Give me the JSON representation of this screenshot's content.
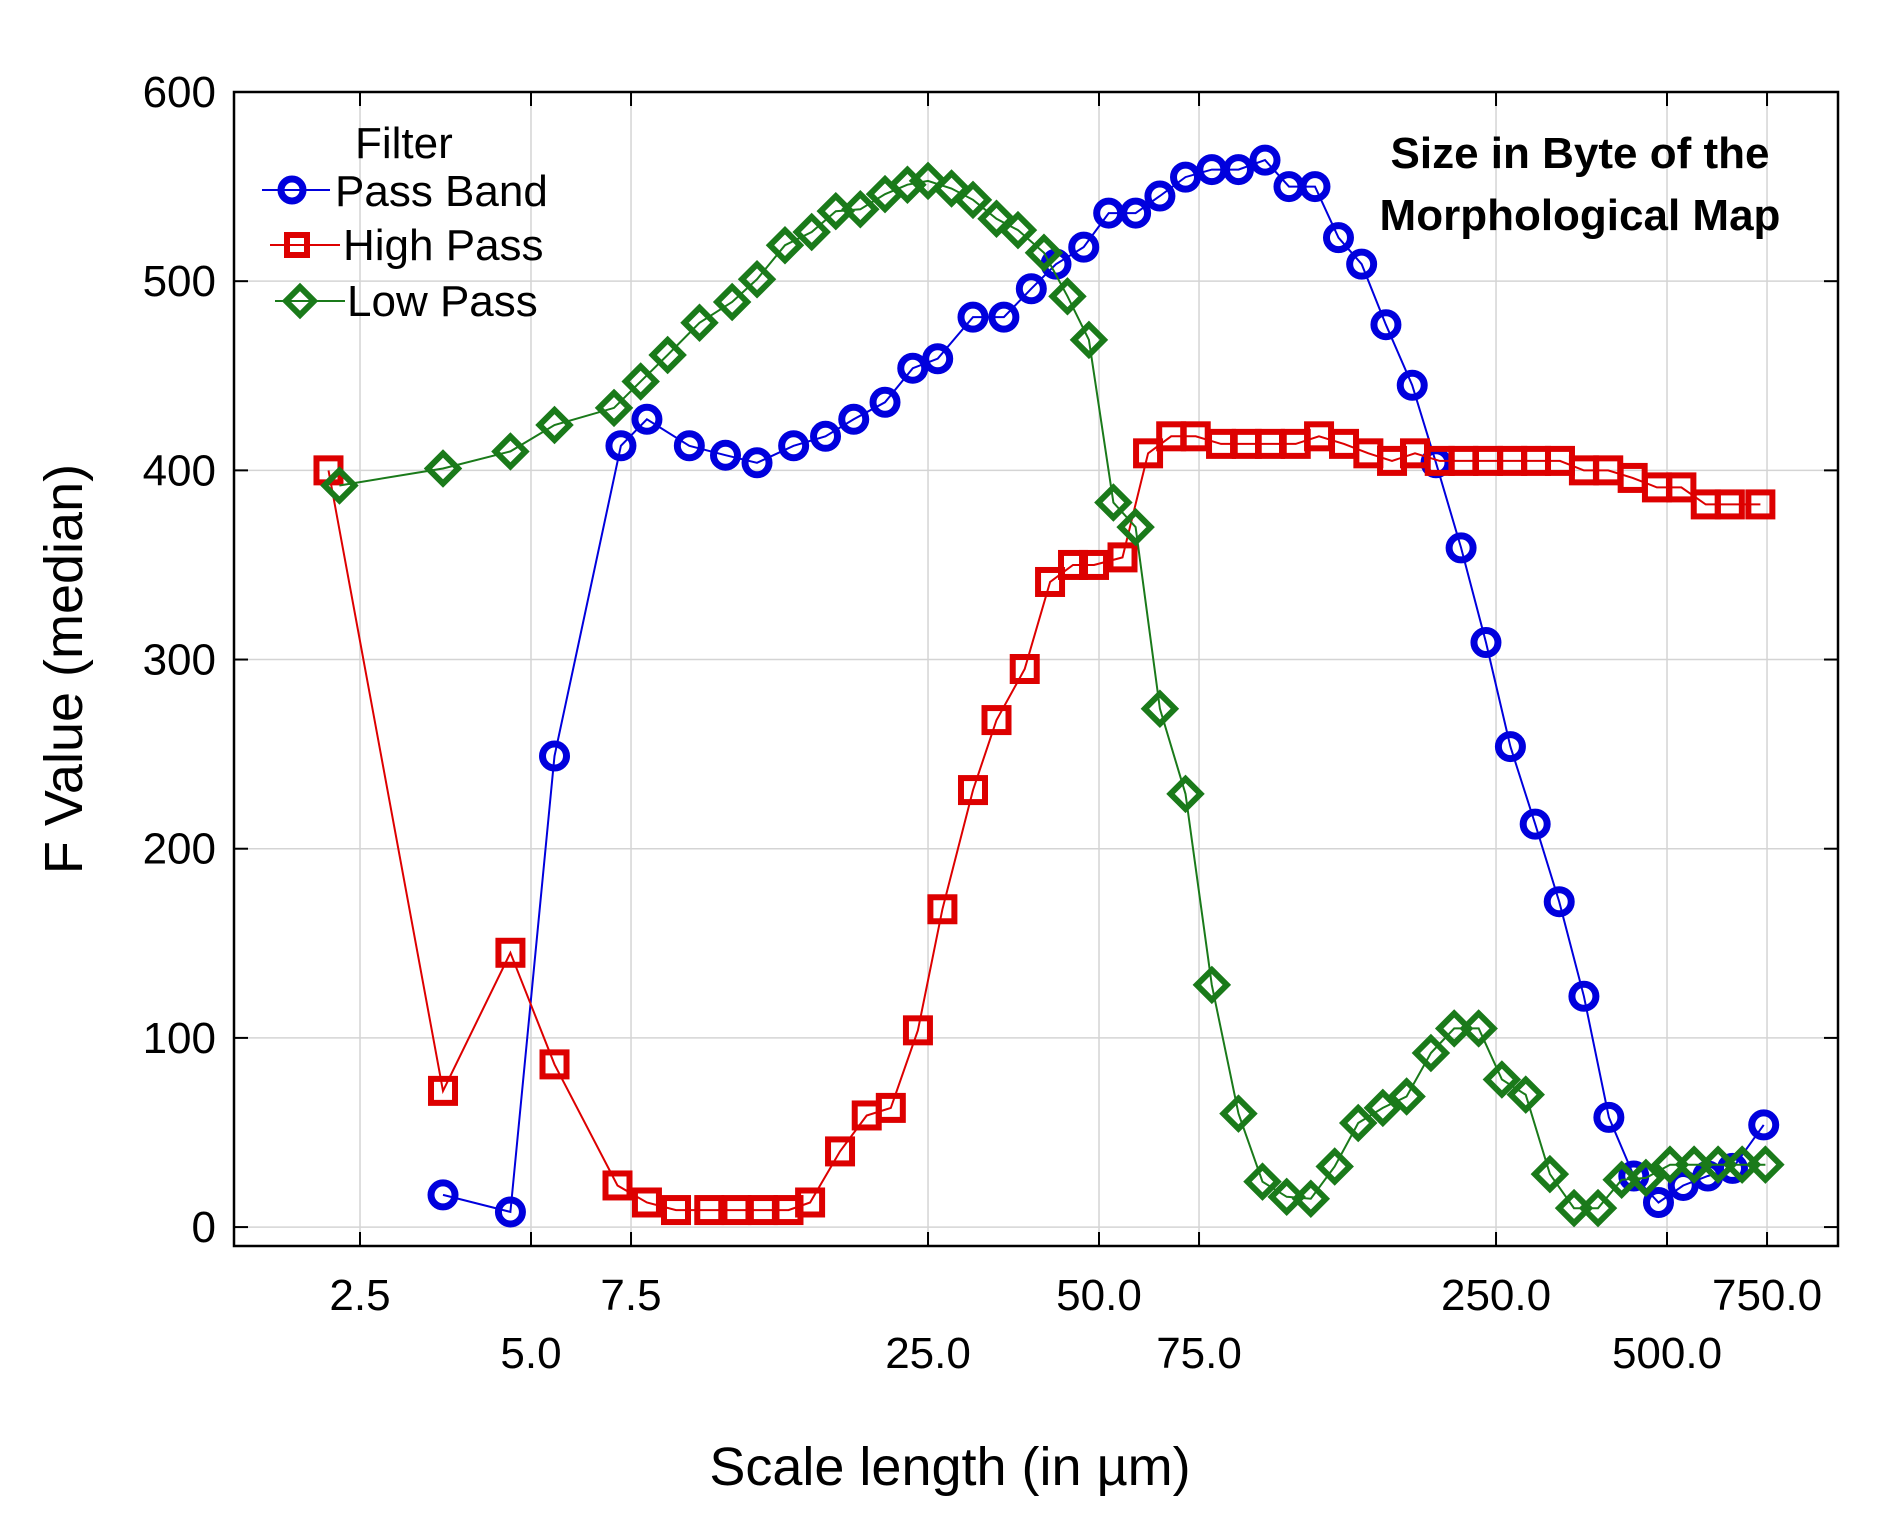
{
  "chart_data": {
    "type": "line",
    "title": "",
    "xlabel": "Scale length (in µm)",
    "ylabel": "F Value (median)",
    "x_scale": "log",
    "xlim": [
      1.5,
      1000
    ],
    "ylim": [
      -10,
      600
    ],
    "grid": true,
    "legend_position": "top-left",
    "legend_title": "Filter",
    "annotation": [
      "Size in Byte of the",
      "Morphological Map"
    ],
    "x_tick_values": [
      2.5,
      5.0,
      7.5,
      25.0,
      50.0,
      75.0,
      250.0,
      500.0,
      750.0
    ],
    "x_tick_labels": [
      "2.5",
      "5.0",
      "7.5",
      "25.0",
      "50.0",
      "75.0",
      "250.0",
      "500.0",
      "750.0"
    ],
    "x_tick_rows": [
      0,
      1,
      0,
      1,
      0,
      1,
      0,
      1,
      0
    ],
    "y_ticks": [
      0,
      100,
      200,
      300,
      400,
      500,
      600
    ],
    "y_tick_labels": [
      "0",
      "100",
      "200",
      "300",
      "400",
      "500",
      "600"
    ],
    "series": [
      {
        "name": "Pass Band",
        "color": "#0000dd",
        "marker": "circle",
        "x": [
          3.5,
          4.6,
          5.5,
          7.2,
          8.0,
          9.5,
          11.0,
          12.5,
          14.5,
          16.5,
          18.5,
          21.0,
          23.5,
          26.0,
          30.0,
          34.0,
          38.0,
          42.0,
          47.0,
          52.0,
          58.0,
          64.0,
          71.0,
          79.0,
          88.0,
          98.0,
          108.0,
          120.0,
          132.0,
          145.0,
          160.0,
          178.0,
          196.0,
          217.0,
          240.0,
          265.0,
          293.0,
          323.0,
          357.0,
          395.0,
          437.0,
          483.0,
          534.0,
          590.0,
          652.0,
          740.0
        ],
        "y": [
          17,
          8,
          249,
          413,
          427,
          413,
          408,
          404,
          413,
          418,
          427,
          436,
          454,
          459,
          481,
          481,
          496,
          509,
          518,
          536,
          536,
          545,
          555,
          559,
          559,
          564,
          550,
          550,
          523,
          509,
          477,
          445,
          404,
          359,
          309,
          254,
          213,
          172,
          122,
          58,
          27,
          13,
          22,
          27,
          31,
          54
        ]
      },
      {
        "name": "High Pass",
        "color": "#dd0000",
        "marker": "square",
        "x": [
          2.2,
          3.5,
          4.6,
          5.5,
          7.1,
          8.0,
          9.0,
          10.3,
          11.5,
          12.8,
          14.2,
          15.5,
          17.5,
          19.5,
          21.5,
          24.0,
          26.5,
          30.0,
          33.0,
          37.0,
          41.0,
          45.0,
          49.0,
          55.0,
          61.0,
          67.0,
          74.0,
          82.0,
          91.0,
          100.0,
          111.0,
          122.0,
          135.0,
          149.0,
          164.0,
          180.0,
          199.0,
          219.0,
          242.0,
          267.0,
          294.0,
          324.0,
          357.0,
          394.0,
          435.0,
          480.0,
          530.0,
          585.0,
          645.0,
          730.0
        ],
        "y": [
          400,
          72,
          145,
          86,
          22,
          13,
          9,
          9,
          9,
          9,
          9,
          13,
          40,
          59,
          63,
          104,
          168,
          231,
          268,
          295,
          341,
          350,
          350,
          354,
          409,
          418,
          418,
          414,
          414,
          414,
          414,
          418,
          414,
          409,
          405,
          409,
          405,
          405,
          405,
          405,
          405,
          405,
          400,
          400,
          396,
          391,
          391,
          382,
          382,
          382
        ]
      },
      {
        "name": "Low Pass",
        "color": "#1a7a1a",
        "marker": "diamond",
        "x": [
          2.3,
          3.5,
          4.6,
          5.5,
          7.0,
          7.8,
          8.7,
          9.9,
          11.3,
          12.5,
          14.0,
          15.6,
          17.2,
          19.0,
          21.0,
          23.0,
          25.0,
          27.5,
          30.0,
          33.0,
          36.0,
          40.0,
          44.0,
          48.0,
          53.0,
          58.0,
          64.0,
          71.0,
          79.0,
          88.0,
          97.0,
          107.0,
          118.0,
          130.0,
          143.0,
          158.0,
          174.0,
          192.0,
          211.0,
          233.0,
          256.0,
          282.0,
          311.0,
          343.0,
          378.0,
          416.0,
          459.0,
          506.0,
          558.0,
          615.0,
          678.0,
          745.0
        ],
        "y": [
          392,
          401,
          410,
          424,
          433,
          447,
          461,
          478,
          489,
          501,
          519,
          526,
          537,
          538,
          546,
          551,
          553,
          549,
          543,
          533,
          527,
          515,
          492,
          469,
          383,
          370,
          274,
          229,
          128,
          60,
          24,
          16,
          15,
          32,
          55,
          63,
          69,
          92,
          105,
          105,
          78,
          70,
          28,
          10,
          10,
          25,
          26,
          33,
          33,
          33,
          33,
          33
        ]
      }
    ]
  }
}
